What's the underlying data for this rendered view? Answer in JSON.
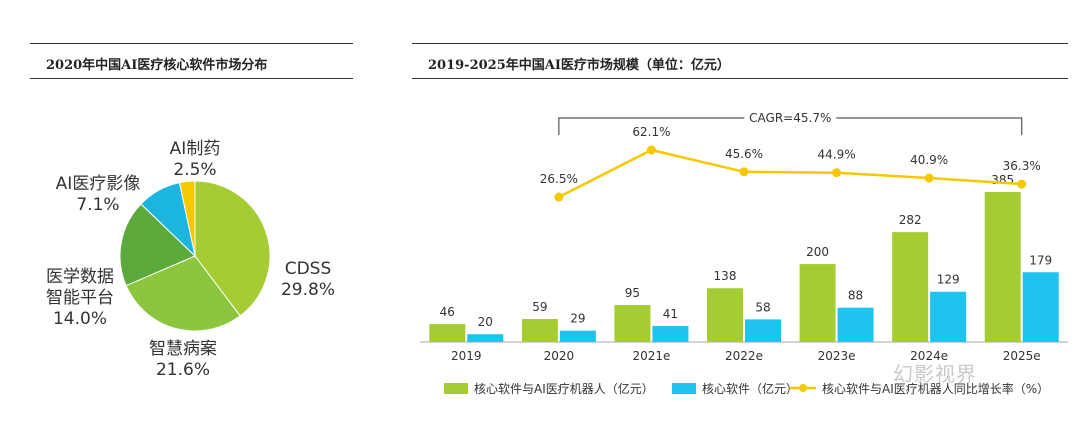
{
  "pie_panel": {
    "title": "2020年中国AI医疗核心软件市场分布"
  },
  "bar_panel": {
    "title": "2019-2025年中国AI医疗市场规模（单位：亿元）"
  },
  "watermark": "幻影视界",
  "chart_data": [
    {
      "type": "pie",
      "title": "2020年中国AI医疗核心软件市场分布",
      "slices": [
        {
          "label": "CDSS",
          "value_label": "29.8%",
          "value": 29.8,
          "color": "#a6cc34"
        },
        {
          "label": "智慧病案",
          "value_label": "21.6%",
          "value": 21.6,
          "color": "#8cc63f"
        },
        {
          "label": "医学数据\n智能平台",
          "value_label": "14.0%",
          "value": 14.0,
          "color": "#5daa3c"
        },
        {
          "label": "AI医疗影像",
          "value_label": "7.1%",
          "value": 7.1,
          "color": "#1cb5e0"
        },
        {
          "label": "AI制药",
          "value_label": "2.5%",
          "value": 2.5,
          "color": "#f5c800"
        }
      ]
    },
    {
      "type": "bar",
      "title": "2019-2025年中国AI医疗市场规模（单位：亿元）",
      "categories": [
        "2019",
        "2020",
        "2021e",
        "2022e",
        "2023e",
        "2024e",
        "2025e"
      ],
      "series": [
        {
          "name": "核心软件与AI医疗机器人（亿元）",
          "type": "bar",
          "color": "#a6cc34",
          "values": [
            46,
            59,
            95,
            138,
            200,
            282,
            385
          ]
        },
        {
          "name": "核心软件（亿元）",
          "type": "bar",
          "color": "#1ec3ee",
          "values": [
            20,
            29,
            41,
            58,
            88,
            129,
            179
          ]
        },
        {
          "name": "核心软件与AI医疗机器人同比增长率（%）",
          "type": "line",
          "color": "#f5c800",
          "x": [
            "2020",
            "2021e",
            "2022e",
            "2023e",
            "2024e",
            "2025e"
          ],
          "values": [
            26.5,
            62.1,
            45.6,
            44.9,
            40.9,
            36.3
          ],
          "labels": [
            "26.5%",
            "62.1%",
            "45.6%",
            "44.9%",
            "40.9%",
            "36.3%"
          ]
        }
      ],
      "annotation": "CAGR=45.7%",
      "legend_position": "bottom"
    }
  ]
}
